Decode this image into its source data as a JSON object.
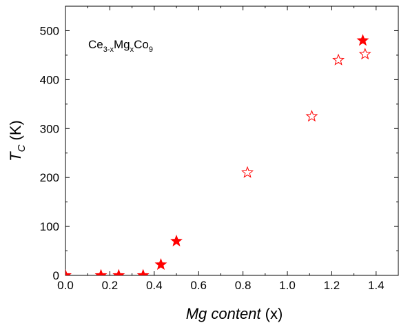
{
  "chart_data": {
    "type": "scatter",
    "title": "",
    "xlabel": {
      "italic": "Mg content",
      "normal": " (x)"
    },
    "ylabel": {
      "main": "T",
      "sub": "C",
      "suffix": " (K)"
    },
    "xlim": [
      0,
      1.5
    ],
    "ylim": [
      0,
      550
    ],
    "xticks": [
      0.0,
      0.2,
      0.4,
      0.6,
      0.8,
      1.0,
      1.2,
      1.4
    ],
    "xtick_labels": [
      "0.0",
      "0.2",
      "0.4",
      "0.6",
      "0.8",
      "1.0",
      "1.2",
      "1.4"
    ],
    "yticks": [
      0,
      100,
      200,
      300,
      400,
      500
    ],
    "ytick_labels": [
      "0",
      "100",
      "200",
      "300",
      "400",
      "500"
    ],
    "grid": false,
    "annotation": {
      "parts": [
        "Ce",
        "3-x",
        "Mg",
        "x",
        "Co",
        "9"
      ]
    },
    "series": [
      {
        "marker": "star-filled",
        "color": "#ff0000",
        "x": [
          0.0,
          0.16,
          0.24,
          0.35,
          0.43,
          0.5,
          1.34
        ],
        "y": [
          0,
          0,
          0,
          0,
          22,
          70,
          480
        ]
      },
      {
        "marker": "star-open",
        "color": "#ff0000",
        "x": [
          0.82,
          1.11,
          1.23,
          1.35
        ],
        "y": [
          210,
          325,
          440,
          452
        ]
      }
    ]
  }
}
